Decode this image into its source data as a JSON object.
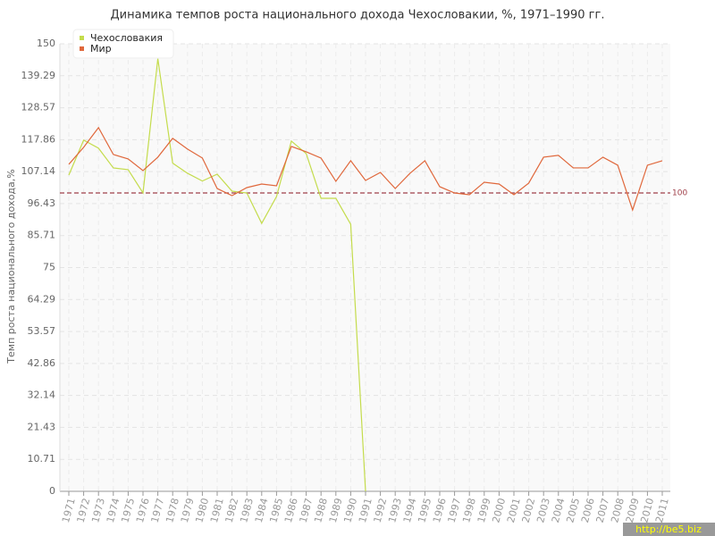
{
  "chart_data": {
    "type": "line",
    "title": "Динамика темпов роста национального дохода Чехословакии, %, 1971–1990 гг.",
    "y_label": "Темп роста национального дохода,%",
    "watermark": "http://be5.biz",
    "x": [
      1971,
      1972,
      1973,
      1974,
      1975,
      1976,
      1977,
      1978,
      1979,
      1980,
      1981,
      1982,
      1983,
      1984,
      1985,
      1986,
      1987,
      1988,
      1989,
      1990,
      1991,
      1992,
      1993,
      1994,
      1995,
      1996,
      1997,
      1998,
      1999,
      2000,
      2001,
      2002,
      2003,
      2004,
      2005,
      2006,
      2007,
      2008,
      2009,
      2010,
      2011
    ],
    "xlim": [
      1971,
      2011
    ],
    "ylim": [
      0,
      150
    ],
    "yticks": [
      0,
      10.71,
      21.43,
      32.14,
      42.86,
      53.57,
      64.29,
      75,
      85.71,
      96.43,
      107.14,
      117.86,
      128.57,
      139.29,
      150
    ],
    "grid": true,
    "legend": "top-left",
    "reference_line": 100,
    "reference_color": "#a0404a",
    "series": [
      {
        "name": "Чехословакия",
        "color": "#c4dc4c",
        "values": [
          106,
          117.7,
          115,
          108.4,
          107.8,
          100,
          145,
          110,
          106.6,
          104,
          106.3,
          100.6,
          100,
          89.8,
          98.8,
          117.4,
          113.2,
          98.2,
          98.2,
          89.5,
          0,
          null,
          null,
          null,
          null,
          null,
          null,
          null,
          null,
          null,
          null,
          null,
          null,
          null,
          null,
          null,
          null,
          null,
          null,
          null,
          null
        ]
      },
      {
        "name": "Мир",
        "color": "#e0683c",
        "values": [
          109.6,
          115.3,
          121.9,
          112.9,
          111.4,
          107.5,
          112,
          118.3,
          114.7,
          111.7,
          101.5,
          99.1,
          101.8,
          103,
          102.4,
          115.6,
          113.8,
          111.7,
          103.9,
          110.8,
          104.2,
          106.9,
          101.5,
          106.6,
          110.8,
          102.1,
          100,
          99.4,
          103.6,
          103,
          99.4,
          103.3,
          112,
          112.6,
          108.4,
          108.4,
          112,
          109.3,
          94.3,
          109.3,
          110.8
        ]
      }
    ]
  }
}
